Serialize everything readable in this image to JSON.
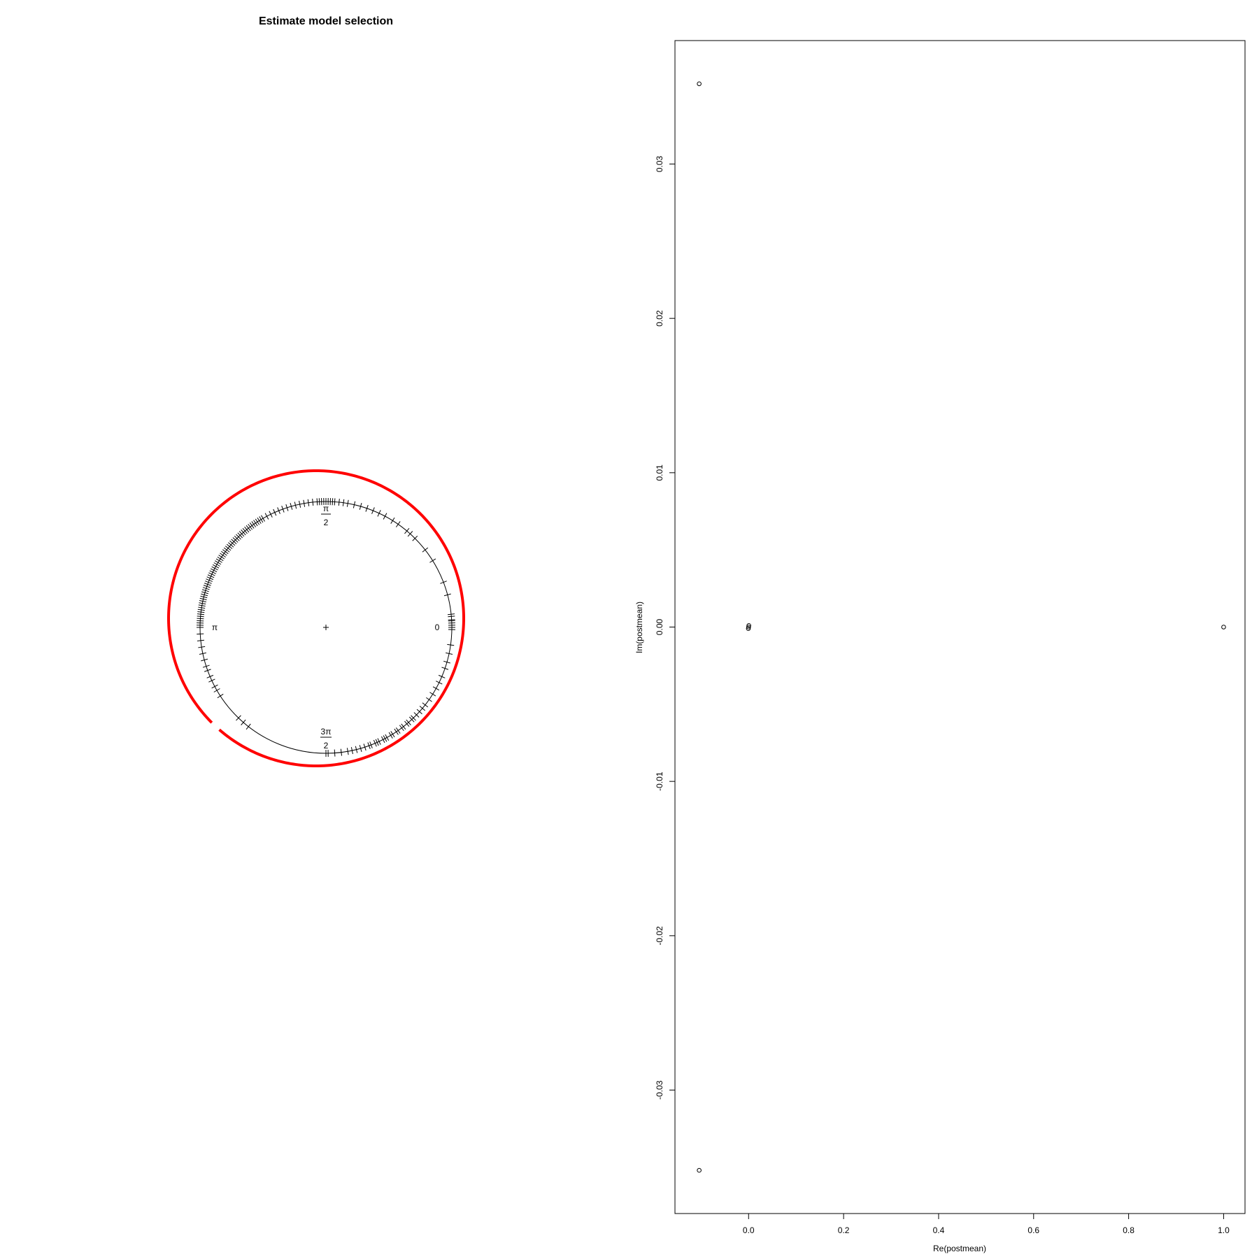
{
  "chart_data": [
    {
      "type": "circular",
      "title": "Estimate model selection",
      "angle_labels": [
        {
          "angle": "0",
          "label": "0"
        },
        {
          "angle": "pi/2",
          "label_num": "π",
          "label_den": "2"
        },
        {
          "angle": "pi",
          "label": "π"
        },
        {
          "angle": "3pi/2",
          "label_num": "3π",
          "label_den": "2"
        }
      ],
      "density_color": "#ff0000",
      "tick_color": "#000000",
      "observations_deg": [
        -1,
        0,
        1,
        2,
        3,
        3.5,
        5,
        6,
        -8,
        -12,
        -16,
        -19,
        -23,
        -26,
        -29,
        -32,
        -35,
        -38,
        -40,
        -42,
        -44,
        -46,
        -47,
        -49,
        -50,
        -52,
        -53,
        -55,
        -56,
        -58,
        -59,
        -61,
        -62,
        -63,
        -65,
        -66,
        -67,
        -69,
        -70,
        -72,
        -74,
        -76,
        -78,
        -80,
        -83,
        -86,
        -89,
        -90,
        -128,
        -131,
        -134,
        -147,
        -150,
        -152,
        -155,
        -157,
        -160,
        -162,
        -165,
        -168,
        -171,
        -174,
        -177,
        180,
        15,
        21,
        32,
        38,
        45,
        48,
        50,
        55,
        58,
        62,
        65,
        68,
        71,
        74,
        77,
        80,
        82,
        84,
        86,
        87,
        88,
        89,
        90,
        91,
        92,
        93,
        94,
        96,
        98,
        100,
        102,
        104,
        106,
        108,
        110,
        112,
        114,
        116,
        118,
        120,
        121,
        122,
        123,
        124,
        125,
        126,
        127,
        128,
        129,
        130,
        131,
        132,
        133,
        134,
        135,
        136,
        137,
        138,
        139,
        140,
        141,
        142,
        143,
        144,
        145,
        146,
        147,
        148,
        149,
        150,
        151,
        152,
        153,
        154,
        155,
        156,
        157,
        158,
        159,
        160,
        161,
        162,
        163,
        164,
        165,
        166,
        167,
        168,
        169,
        170,
        171,
        172,
        173,
        174,
        175,
        176,
        177,
        178,
        179
      ]
    },
    {
      "type": "scatter",
      "xlabel": "Re(postmean)",
      "ylabel": "Im(postmean)",
      "xlim": [
        -0.155,
        1.045
      ],
      "ylim": [
        -0.038,
        0.038
      ],
      "x_ticks": [
        "0.0",
        "0.2",
        "0.4",
        "0.6",
        "0.8",
        "1.0"
      ],
      "y_ticks": [
        "-0.03",
        "-0.02",
        "-0.01",
        "0.00",
        "0.01",
        "0.02",
        "0.03"
      ],
      "points": [
        {
          "x": -0.104,
          "y": 0.0352
        },
        {
          "x": -0.104,
          "y": -0.0352
        },
        {
          "x": 0.0,
          "y": 0.0
        },
        {
          "x": 0.0005,
          "y": 0.0001
        },
        {
          "x": -0.0005,
          "y": -0.0001
        },
        {
          "x": 1.0,
          "y": 0.0
        }
      ]
    }
  ]
}
